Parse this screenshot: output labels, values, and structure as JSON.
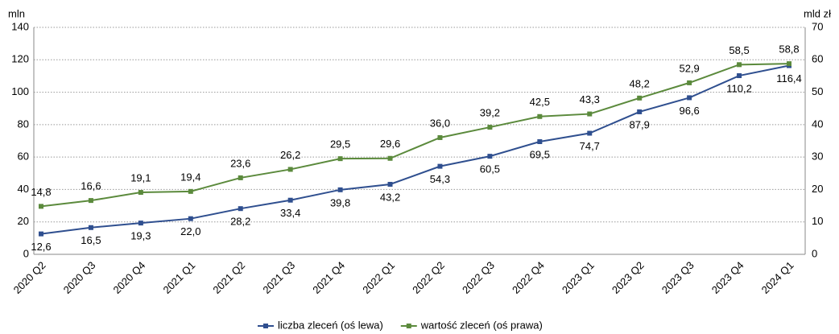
{
  "chart_data": {
    "type": "line",
    "y_label": "mln",
    "y2_label": "mld zł",
    "categories": [
      "2020 Q2",
      "2020 Q3",
      "2020 Q4",
      "2021 Q1",
      "2021 Q2",
      "2021 Q3",
      "2021 Q4",
      "2022 Q1",
      "2022 Q2",
      "2022 Q3",
      "2022 Q4",
      "2023 Q1",
      "2023 Q2",
      "2023 Q3",
      "2023 Q4",
      "2024 Q1"
    ],
    "series": [
      {
        "name": "liczba zleceń (oś lewa)",
        "color": "#2f4f8f",
        "axis": "y",
        "values": [
          12.6,
          16.5,
          19.3,
          22.0,
          28.2,
          33.4,
          39.8,
          43.2,
          54.3,
          60.5,
          69.5,
          74.7,
          87.9,
          96.6,
          110.2,
          116.4
        ],
        "value_labels": [
          "12,6",
          "16,5",
          "19,3",
          "22,0",
          "28,2",
          "33,4",
          "39,8",
          "43,2",
          "54,3",
          "60,5",
          "69,5",
          "74,7",
          "87,9",
          "96,6",
          "110,2",
          "116,4"
        ]
      },
      {
        "name": "wartość zleceń (oś prawa)",
        "color": "#5b8a3c",
        "axis": "y2",
        "values": [
          14.8,
          16.6,
          19.1,
          19.4,
          23.6,
          26.2,
          29.5,
          29.6,
          36.0,
          39.2,
          42.5,
          43.3,
          48.2,
          52.9,
          58.5,
          58.8
        ],
        "value_labels": [
          "14,8",
          "16,6",
          "19,1",
          "19,4",
          "23,6",
          "26,2",
          "29,5",
          "29,6",
          "36,0",
          "39,2",
          "42,5",
          "43,3",
          "48,2",
          "52,9",
          "58,5",
          "58,8"
        ]
      }
    ],
    "ylim": [
      0,
      140
    ],
    "yticks": [
      0,
      20,
      40,
      60,
      80,
      100,
      120,
      140
    ],
    "y2lim": [
      0,
      70
    ],
    "y2ticks": [
      0,
      10,
      20,
      30,
      40,
      50,
      60,
      70
    ],
    "grid": true,
    "legend": "bottom"
  }
}
